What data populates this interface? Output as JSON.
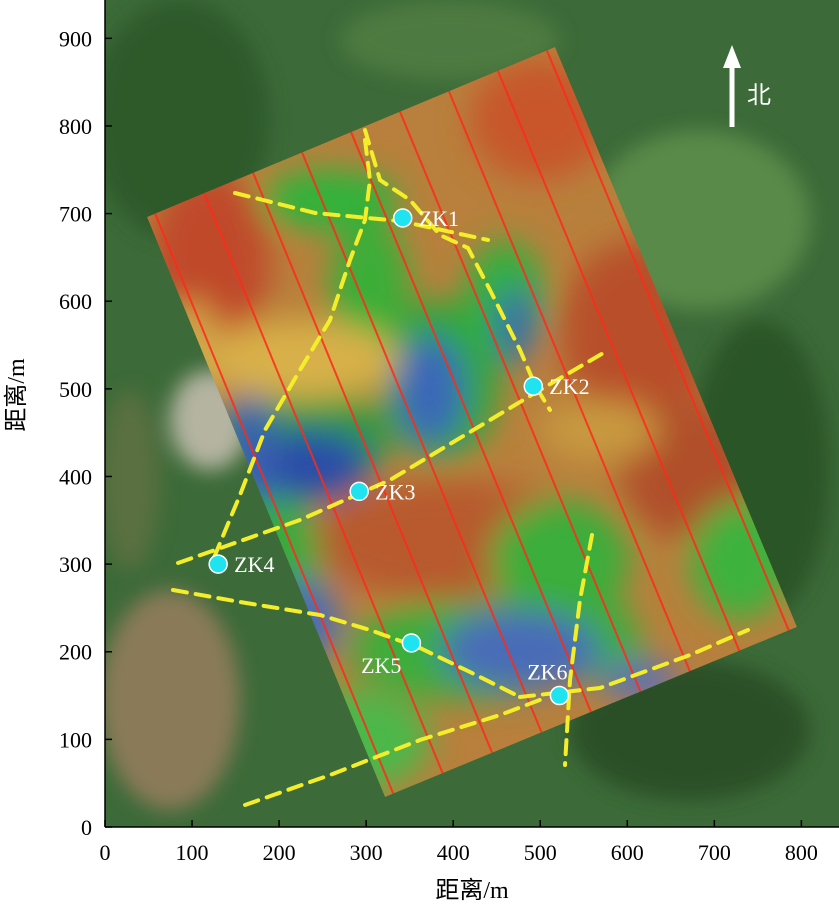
{
  "x_axis": {
    "label": "距离/m",
    "ticks": [
      0,
      100,
      200,
      300,
      400,
      500,
      600,
      700,
      800
    ],
    "range": [
      0,
      840
    ]
  },
  "y_axis": {
    "label": "距离/m",
    "ticks": [
      0,
      100,
      200,
      300,
      400,
      500,
      600,
      700,
      800,
      900
    ],
    "range": [
      0,
      945
    ]
  },
  "north_arrow": {
    "label": "北"
  },
  "boreholes": [
    {
      "id": "ZK1",
      "x": 342,
      "y": 695,
      "label_side": "right"
    },
    {
      "id": "ZK2",
      "x": 492,
      "y": 503,
      "label_side": "right"
    },
    {
      "id": "ZK3",
      "x": 292,
      "y": 383,
      "label_side": "right"
    },
    {
      "id": "ZK4",
      "x": 130,
      "y": 300,
      "label_side": "right"
    },
    {
      "id": "ZK5",
      "x": 352,
      "y": 210,
      "label_side": "below-left"
    },
    {
      "id": "ZK6",
      "x": 522,
      "y": 150,
      "label_side": "above"
    }
  ],
  "colors": {
    "marker": "#1fe3ee",
    "fault": "#f4ee2a",
    "survey_line": "#ff2a1a",
    "high_value": "#c8462a",
    "low_value": "#2a4ea8",
    "mid_value": "#2fb43a"
  }
}
